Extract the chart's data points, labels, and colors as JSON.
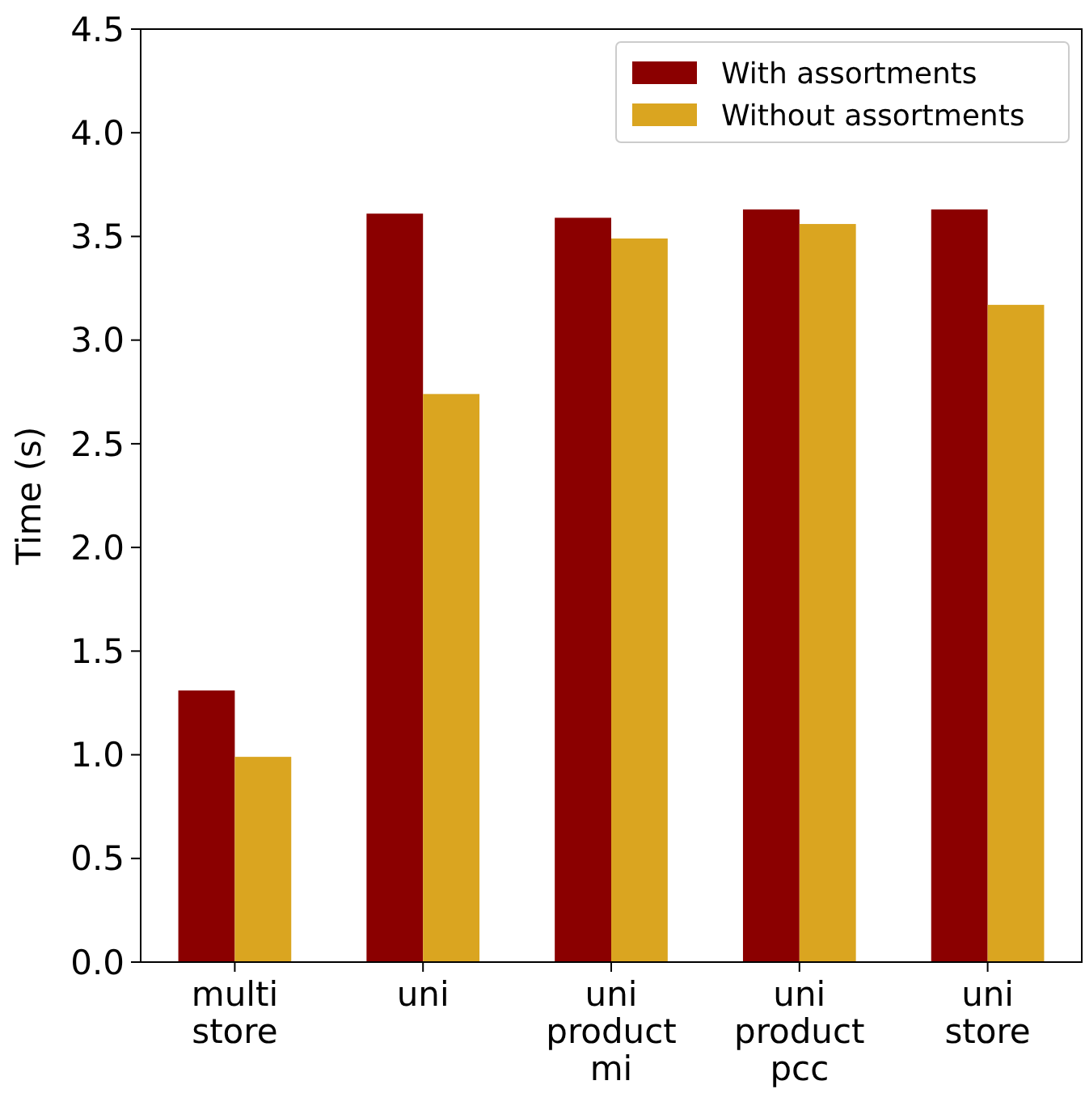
{
  "chart_data": {
    "type": "bar",
    "ylabel": "Time (s)",
    "categories": [
      "multi\nstore",
      "uni",
      "uni\nproduct\nmi",
      "uni\nproduct\npcc",
      "uni\nstore"
    ],
    "series": [
      {
        "name": "With assortments",
        "color": "#8b0000",
        "values": [
          1.31,
          3.61,
          3.59,
          3.63,
          3.63
        ]
      },
      {
        "name": "Without assortments",
        "color": "#daa520",
        "values": [
          0.99,
          2.74,
          3.49,
          3.56,
          3.17
        ]
      }
    ],
    "ylim": [
      0,
      4.5
    ],
    "yticks": [
      {
        "value": 0,
        "label": "0.0"
      },
      0.5,
      {
        "value": 1,
        "label": "1.0"
      },
      1.5,
      {
        "value": 2,
        "label": "2.0"
      },
      2.5,
      {
        "value": 3,
        "label": "3.0"
      },
      3.5,
      {
        "value": 4,
        "label": "4.0"
      },
      4.5
    ],
    "grid": false,
    "legend": "top right"
  }
}
